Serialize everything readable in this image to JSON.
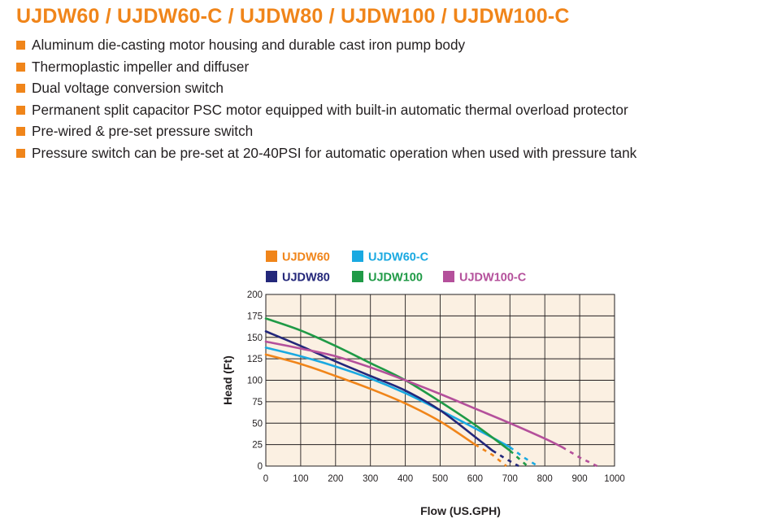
{
  "header": {
    "title": "UJDW60 / UJDW60-C / UJDW80 / UJDW100 / UJDW100-C",
    "title_color": "#f0851a"
  },
  "features": [
    "Aluminum die-casting motor housing and durable cast iron pump body",
    "Thermoplastic impeller and diffuser",
    "Dual voltage conversion switch",
    "Permanent split capacitor PSC motor equipped with built-in automatic thermal overload protector",
    "Pre-wired & pre-set pressure switch",
    "Pressure switch can be pre-set at 20-40PSI for automatic operation when used with pressure tank"
  ],
  "bullet_color": "#f0851a",
  "chart_data": {
    "type": "line",
    "title": "",
    "xlabel": "Flow (US.GPH)",
    "ylabel": "Head (Ft)",
    "xlim": [
      0,
      1000
    ],
    "ylim": [
      0,
      200
    ],
    "x_ticks": [
      0,
      100,
      200,
      300,
      400,
      500,
      600,
      700,
      800,
      900,
      1000
    ],
    "y_ticks": [
      0,
      25,
      50,
      75,
      100,
      125,
      150,
      175,
      200
    ],
    "grid": true,
    "plot_background": "#fbf0e2",
    "legend_position": "top",
    "series": [
      {
        "name": "UJDW60",
        "color": "#f0851a",
        "x": [
          0,
          100,
          200,
          300,
          400,
          500,
          600
        ],
        "y": [
          130,
          119,
          105,
          90,
          73,
          52,
          25
        ],
        "dashed_x": [
          600,
          650,
          690
        ],
        "dashed_y": [
          25,
          13,
          0
        ]
      },
      {
        "name": "UJDW60-C",
        "color": "#1aa9e1",
        "x": [
          0,
          100,
          200,
          300,
          400,
          500,
          600,
          700
        ],
        "y": [
          138,
          128,
          116,
          102,
          85,
          65,
          44,
          22
        ],
        "dashed_x": [
          700,
          740,
          780
        ],
        "dashed_y": [
          22,
          10,
          0
        ]
      },
      {
        "name": "UJDW80",
        "color": "#23277a",
        "x": [
          0,
          100,
          200,
          300,
          400,
          500,
          600,
          650
        ],
        "y": [
          157,
          140,
          122,
          105,
          88,
          65,
          34,
          18
        ],
        "dashed_x": [
          650,
          690,
          725
        ],
        "dashed_y": [
          18,
          8,
          0
        ]
      },
      {
        "name": "UJDW100",
        "color": "#1f9a46",
        "x": [
          0,
          100,
          200,
          300,
          400,
          500,
          600,
          700
        ],
        "y": [
          172,
          158,
          140,
          120,
          100,
          75,
          48,
          18
        ],
        "dashed_x": [
          700,
          725,
          750
        ],
        "dashed_y": [
          18,
          9,
          0
        ]
      },
      {
        "name": "UJDW100-C",
        "color": "#b4509b",
        "x": [
          0,
          100,
          200,
          300,
          400,
          500,
          600,
          700,
          800,
          850
        ],
        "y": [
          145,
          137,
          128,
          115,
          100,
          84,
          67,
          50,
          32,
          22
        ],
        "dashed_x": [
          850,
          900,
          950
        ],
        "dashed_y": [
          22,
          10,
          0
        ]
      }
    ]
  }
}
